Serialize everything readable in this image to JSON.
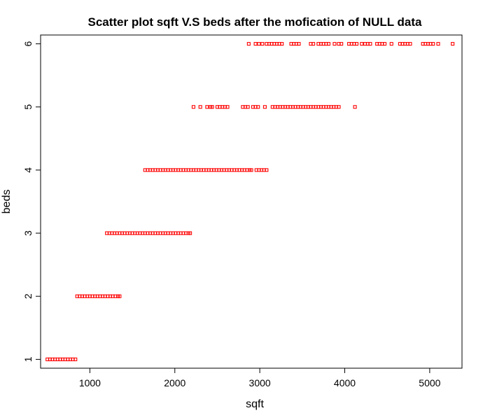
{
  "chart_data": {
    "type": "scatter",
    "title": "Scatter plot sqft V.S beds after the mofication of NULL data",
    "xlabel": "sqft",
    "ylabel": "beds",
    "xlim": [
      420,
      5380
    ],
    "ylim": [
      0.86,
      6.14
    ],
    "xticks": [
      1000,
      2000,
      3000,
      4000,
      5000
    ],
    "yticks": [
      1,
      2,
      3,
      4,
      5,
      6
    ],
    "grid": false,
    "legend": "none",
    "marker": "open-square",
    "color": "#FF0000",
    "series": [
      {
        "points": [
          [
            500,
            1
          ],
          [
            530,
            1
          ],
          [
            560,
            1
          ],
          [
            590,
            1
          ],
          [
            620,
            1
          ],
          [
            650,
            1
          ],
          [
            680,
            1
          ],
          [
            710,
            1
          ],
          [
            740,
            1
          ],
          [
            770,
            1
          ],
          [
            800,
            1
          ],
          [
            830,
            1
          ],
          [
            850,
            2
          ],
          [
            880,
            2
          ],
          [
            910,
            2
          ],
          [
            940,
            2
          ],
          [
            970,
            2
          ],
          [
            1000,
            2
          ],
          [
            1030,
            2
          ],
          [
            1060,
            2
          ],
          [
            1090,
            2
          ],
          [
            1120,
            2
          ],
          [
            1150,
            2
          ],
          [
            1180,
            2
          ],
          [
            1210,
            2
          ],
          [
            1240,
            2
          ],
          [
            1270,
            2
          ],
          [
            1300,
            2
          ],
          [
            1330,
            2
          ],
          [
            1350,
            2
          ],
          [
            1200,
            3
          ],
          [
            1230,
            3
          ],
          [
            1260,
            3
          ],
          [
            1290,
            3
          ],
          [
            1320,
            3
          ],
          [
            1350,
            3
          ],
          [
            1380,
            3
          ],
          [
            1410,
            3
          ],
          [
            1440,
            3
          ],
          [
            1470,
            3
          ],
          [
            1500,
            3
          ],
          [
            1530,
            3
          ],
          [
            1560,
            3
          ],
          [
            1590,
            3
          ],
          [
            1620,
            3
          ],
          [
            1650,
            3
          ],
          [
            1680,
            3
          ],
          [
            1710,
            3
          ],
          [
            1740,
            3
          ],
          [
            1770,
            3
          ],
          [
            1800,
            3
          ],
          [
            1830,
            3
          ],
          [
            1860,
            3
          ],
          [
            1890,
            3
          ],
          [
            1920,
            3
          ],
          [
            1950,
            3
          ],
          [
            1980,
            3
          ],
          [
            2010,
            3
          ],
          [
            2040,
            3
          ],
          [
            2070,
            3
          ],
          [
            2100,
            3
          ],
          [
            2130,
            3
          ],
          [
            2160,
            3
          ],
          [
            2180,
            3
          ],
          [
            1650,
            4
          ],
          [
            1680,
            4
          ],
          [
            1710,
            4
          ],
          [
            1740,
            4
          ],
          [
            1770,
            4
          ],
          [
            1800,
            4
          ],
          [
            1830,
            4
          ],
          [
            1860,
            4
          ],
          [
            1890,
            4
          ],
          [
            1920,
            4
          ],
          [
            1950,
            4
          ],
          [
            1980,
            4
          ],
          [
            2010,
            4
          ],
          [
            2040,
            4
          ],
          [
            2070,
            4
          ],
          [
            2100,
            4
          ],
          [
            2130,
            4
          ],
          [
            2160,
            4
          ],
          [
            2190,
            4
          ],
          [
            2220,
            4
          ],
          [
            2250,
            4
          ],
          [
            2280,
            4
          ],
          [
            2310,
            4
          ],
          [
            2340,
            4
          ],
          [
            2370,
            4
          ],
          [
            2400,
            4
          ],
          [
            2430,
            4
          ],
          [
            2460,
            4
          ],
          [
            2490,
            4
          ],
          [
            2520,
            4
          ],
          [
            2550,
            4
          ],
          [
            2580,
            4
          ],
          [
            2610,
            4
          ],
          [
            2640,
            4
          ],
          [
            2670,
            4
          ],
          [
            2700,
            4
          ],
          [
            2730,
            4
          ],
          [
            2760,
            4
          ],
          [
            2790,
            4
          ],
          [
            2820,
            4
          ],
          [
            2850,
            4
          ],
          [
            2880,
            4
          ],
          [
            2900,
            4
          ],
          [
            2960,
            4
          ],
          [
            2990,
            4
          ],
          [
            3020,
            4
          ],
          [
            3050,
            4
          ],
          [
            3080,
            4
          ],
          [
            2220,
            5
          ],
          [
            2300,
            5
          ],
          [
            2380,
            5
          ],
          [
            2420,
            5
          ],
          [
            2440,
            5
          ],
          [
            2500,
            5
          ],
          [
            2530,
            5
          ],
          [
            2560,
            5
          ],
          [
            2590,
            5
          ],
          [
            2620,
            5
          ],
          [
            2800,
            5
          ],
          [
            2830,
            5
          ],
          [
            2860,
            5
          ],
          [
            2920,
            5
          ],
          [
            2950,
            5
          ],
          [
            2980,
            5
          ],
          [
            3060,
            5
          ],
          [
            3150,
            5
          ],
          [
            3180,
            5
          ],
          [
            3210,
            5
          ],
          [
            3240,
            5
          ],
          [
            3270,
            5
          ],
          [
            3300,
            5
          ],
          [
            3330,
            5
          ],
          [
            3360,
            5
          ],
          [
            3390,
            5
          ],
          [
            3420,
            5
          ],
          [
            3450,
            5
          ],
          [
            3480,
            5
          ],
          [
            3510,
            5
          ],
          [
            3540,
            5
          ],
          [
            3570,
            5
          ],
          [
            3600,
            5
          ],
          [
            3630,
            5
          ],
          [
            3660,
            5
          ],
          [
            3690,
            5
          ],
          [
            3720,
            5
          ],
          [
            3750,
            5
          ],
          [
            3780,
            5
          ],
          [
            3810,
            5
          ],
          [
            3840,
            5
          ],
          [
            3870,
            5
          ],
          [
            3900,
            5
          ],
          [
            3930,
            5
          ],
          [
            4120,
            5
          ],
          [
            2870,
            6
          ],
          [
            2950,
            6
          ],
          [
            2990,
            6
          ],
          [
            3030,
            6
          ],
          [
            3080,
            6
          ],
          [
            3110,
            6
          ],
          [
            3140,
            6
          ],
          [
            3170,
            6
          ],
          [
            3200,
            6
          ],
          [
            3230,
            6
          ],
          [
            3260,
            6
          ],
          [
            3370,
            6
          ],
          [
            3400,
            6
          ],
          [
            3430,
            6
          ],
          [
            3460,
            6
          ],
          [
            3600,
            6
          ],
          [
            3630,
            6
          ],
          [
            3690,
            6
          ],
          [
            3720,
            6
          ],
          [
            3750,
            6
          ],
          [
            3780,
            6
          ],
          [
            3810,
            6
          ],
          [
            3880,
            6
          ],
          [
            3930,
            6
          ],
          [
            3960,
            6
          ],
          [
            4050,
            6
          ],
          [
            4080,
            6
          ],
          [
            4110,
            6
          ],
          [
            4140,
            6
          ],
          [
            4200,
            6
          ],
          [
            4240,
            6
          ],
          [
            4270,
            6
          ],
          [
            4300,
            6
          ],
          [
            4380,
            6
          ],
          [
            4410,
            6
          ],
          [
            4440,
            6
          ],
          [
            4470,
            6
          ],
          [
            4550,
            6
          ],
          [
            4650,
            6
          ],
          [
            4680,
            6
          ],
          [
            4710,
            6
          ],
          [
            4740,
            6
          ],
          [
            4770,
            6
          ],
          [
            4920,
            6
          ],
          [
            4950,
            6
          ],
          [
            4980,
            6
          ],
          [
            5010,
            6
          ],
          [
            5040,
            6
          ],
          [
            5100,
            6
          ],
          [
            5270,
            6
          ]
        ]
      }
    ]
  }
}
